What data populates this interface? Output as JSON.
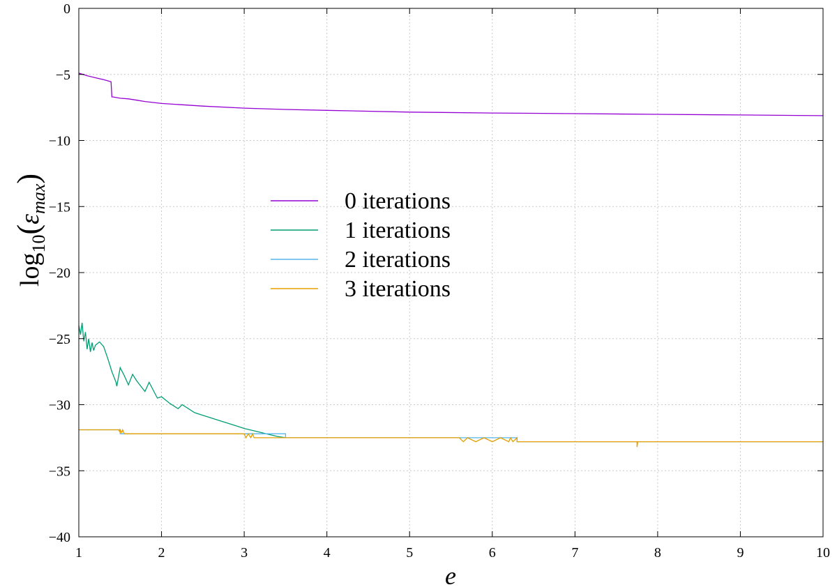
{
  "chart_data": {
    "type": "line",
    "title": "",
    "xlabel": "e",
    "ylabel": {
      "prefix": "log",
      "prefix_sub": "10",
      "open": "(",
      "var": "ε",
      "var_sub": "max",
      "close": ")"
    },
    "xlim": [
      1,
      10
    ],
    "ylim": [
      -40,
      0
    ],
    "xticks": [
      1,
      2,
      3,
      4,
      5,
      6,
      7,
      8,
      9,
      10
    ],
    "yticks": [
      0,
      -5,
      -10,
      -15,
      -20,
      -25,
      -30,
      -35,
      -40
    ],
    "grid": true,
    "legend_position": "center-left",
    "series": [
      {
        "name": "0 iterations",
        "color": "#9400d3",
        "x": [
          1.0,
          1.1,
          1.2,
          1.3,
          1.39,
          1.4,
          1.41,
          1.5,
          1.6,
          1.7,
          1.8,
          2.0,
          2.5,
          3.0,
          3.5,
          4.0,
          5.0,
          6.0,
          7.0,
          8.0,
          9.0,
          10.0
        ],
        "y": [
          -4.9,
          -5.1,
          -5.25,
          -5.4,
          -5.55,
          -6.7,
          -6.7,
          -6.8,
          -6.85,
          -6.95,
          -7.05,
          -7.2,
          -7.4,
          -7.55,
          -7.65,
          -7.72,
          -7.85,
          -7.92,
          -7.97,
          -8.02,
          -8.07,
          -8.12
        ]
      },
      {
        "name": "1 iterations",
        "color": "#009e73",
        "x": [
          1.0,
          1.02,
          1.04,
          1.06,
          1.08,
          1.1,
          1.12,
          1.14,
          1.16,
          1.18,
          1.2,
          1.25,
          1.3,
          1.35,
          1.4,
          1.45,
          1.46,
          1.5,
          1.55,
          1.6,
          1.65,
          1.7,
          1.75,
          1.8,
          1.85,
          1.95,
          2.0,
          2.1,
          2.2,
          2.25,
          2.4,
          2.5,
          2.6,
          2.7,
          2.8,
          2.9,
          3.0,
          3.2,
          3.4,
          3.5
        ],
        "y": [
          -24.0,
          -24.7,
          -23.8,
          -25.2,
          -24.5,
          -25.8,
          -25.0,
          -26.0,
          -25.3,
          -25.9,
          -25.5,
          -25.25,
          -25.6,
          -26.5,
          -27.5,
          -28.3,
          -28.6,
          -27.2,
          -27.8,
          -28.5,
          -27.7,
          -28.2,
          -28.6,
          -29.0,
          -28.3,
          -29.5,
          -29.4,
          -29.9,
          -30.3,
          -30.0,
          -30.6,
          -30.8,
          -31.0,
          -31.2,
          -31.4,
          -31.6,
          -31.8,
          -32.1,
          -32.4,
          -32.5
        ]
      },
      {
        "name": "2 iterations",
        "color": "#56b4e9",
        "x": [
          1.0,
          1.5,
          1.5,
          3.5,
          3.5,
          6.3,
          6.3,
          10.0
        ],
        "y": [
          -31.9,
          -31.9,
          -32.2,
          -32.2,
          -32.5,
          -32.5,
          -32.8,
          -32.8
        ]
      },
      {
        "name": "3 iterations",
        "color": "#e69f00",
        "x": [
          1.0,
          1.48,
          1.5,
          1.5,
          1.52,
          1.53,
          1.55,
          1.56,
          3.0,
          3.02,
          3.05,
          3.08,
          3.1,
          3.12,
          3.5,
          3.5,
          5.6,
          5.65,
          5.7,
          5.8,
          5.9,
          6.0,
          6.1,
          6.2,
          6.22,
          6.25,
          6.3,
          6.3,
          7.75,
          7.75,
          7.76,
          10.0
        ],
        "y": [
          -31.9,
          -31.9,
          -32.1,
          -31.9,
          -32.1,
          -31.9,
          -32.2,
          -32.2,
          -32.2,
          -32.5,
          -32.2,
          -32.5,
          -32.2,
          -32.5,
          -32.5,
          -32.5,
          -32.5,
          -32.8,
          -32.5,
          -32.8,
          -32.5,
          -32.8,
          -32.5,
          -32.8,
          -32.5,
          -32.8,
          -32.5,
          -32.8,
          -32.8,
          -33.2,
          -32.8,
          -32.8
        ]
      }
    ]
  }
}
